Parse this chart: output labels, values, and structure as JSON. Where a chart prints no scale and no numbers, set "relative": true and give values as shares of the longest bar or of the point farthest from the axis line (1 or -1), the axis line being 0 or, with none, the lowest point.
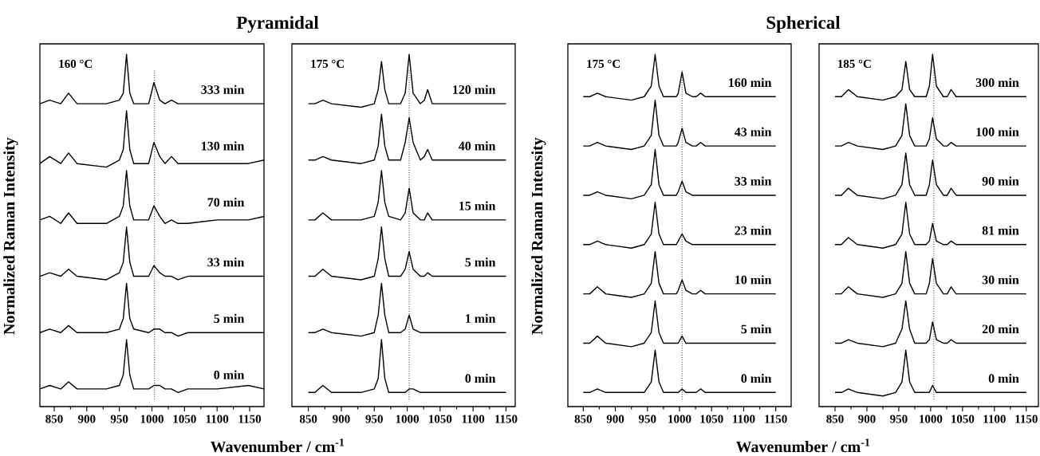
{
  "chart_data": [
    {
      "type": "line",
      "relative": true,
      "title": "Pyramidal",
      "xlabel": "Wavenumber / cm$^{-1}$",
      "ylabel": "Normalized Raman Intensity",
      "annotations": [
        "160 °C"
      ],
      "tick_labels": "x",
      "xlim": [
        828,
        1172
      ],
      "xticks": [
        850,
        {
          "value": 875,
          "label": null
        },
        900,
        {
          "value": 925,
          "label": null
        },
        950,
        {
          "value": 975,
          "label": null
        },
        1000,
        {
          "value": 1025,
          "label": null
        },
        1050,
        {
          "value": 1075,
          "label": null
        },
        1100,
        {
          "value": 1125,
          "label": null
        },
        1150
      ],
      "ref_lines": [
        {
          "axis": "x",
          "value": 1004,
          "color": "#000000",
          "line_style": "dotted"
        }
      ],
      "x": [
        828,
        843,
        860,
        872,
        885,
        930,
        950,
        956,
        961,
        966,
        972,
        995,
        1003,
        1012,
        1020,
        1030,
        1040,
        1055,
        1100,
        1148,
        1172
      ],
      "series": [
        {
          "name": "0 min",
          "color": "#000000",
          "values": [
            0.05,
            0.06,
            0.05,
            0.07,
            0.05,
            0.05,
            0.06,
            0.09,
            0.19,
            0.09,
            0.05,
            0.05,
            0.06,
            0.06,
            0.05,
            0.05,
            0.04,
            0.05,
            0.05,
            0.06,
            0.05
          ]
        },
        {
          "name": "5 min",
          "color": "#000000",
          "values": [
            0.21,
            0.22,
            0.21,
            0.23,
            0.21,
            0.21,
            0.22,
            0.25,
            0.35,
            0.25,
            0.22,
            0.21,
            0.22,
            0.22,
            0.21,
            0.21,
            0.2,
            0.21,
            0.21,
            0.21,
            0.21
          ]
        },
        {
          "name": "33 min",
          "color": "#000000",
          "values": [
            0.37,
            0.38,
            0.37,
            0.39,
            0.37,
            0.36,
            0.38,
            0.41,
            0.51,
            0.41,
            0.37,
            0.37,
            0.4,
            0.38,
            0.37,
            0.37,
            0.36,
            0.37,
            0.37,
            0.37,
            0.37
          ]
        },
        {
          "name": "70 min",
          "color": "#000000",
          "values": [
            0.53,
            0.54,
            0.52,
            0.55,
            0.52,
            0.52,
            0.54,
            0.57,
            0.67,
            0.57,
            0.53,
            0.53,
            0.57,
            0.54,
            0.52,
            0.53,
            0.52,
            0.52,
            0.53,
            0.53,
            0.54
          ]
        },
        {
          "name": "130 min",
          "color": "#000000",
          "values": [
            0.69,
            0.71,
            0.69,
            0.72,
            0.69,
            0.68,
            0.7,
            0.73,
            0.84,
            0.73,
            0.69,
            0.69,
            0.75,
            0.71,
            0.69,
            0.71,
            0.69,
            0.69,
            0.69,
            0.69,
            0.7
          ]
        },
        {
          "name": "333 min",
          "color": "#000000",
          "values": [
            0.86,
            0.87,
            0.86,
            0.89,
            0.86,
            0.86,
            0.87,
            0.89,
            1.0,
            0.89,
            0.86,
            0.86,
            0.92,
            0.87,
            0.86,
            0.87,
            0.86,
            0.86,
            0.86,
            0.86,
            0.86
          ]
        }
      ]
    },
    {
      "type": "line",
      "relative": true,
      "annotations": [
        "175 °C"
      ],
      "tick_labels": "x",
      "xlim": [
        825,
        1164
      ],
      "xticks": [
        850,
        {
          "value": 875,
          "label": null
        },
        900,
        {
          "value": 925,
          "label": null
        },
        950,
        {
          "value": 975,
          "label": null
        },
        1000,
        {
          "value": 1025,
          "label": null
        },
        1050,
        {
          "value": 1075,
          "label": null
        },
        1100,
        {
          "value": 1125,
          "label": null
        },
        1150
      ],
      "ref_lines": [
        {
          "axis": "x",
          "value": 1003,
          "color": "#000000",
          "line_style": "dotted"
        }
      ],
      "x": [
        850,
        860,
        872,
        885,
        930,
        950,
        956,
        961,
        966,
        972,
        990,
        997,
        1003,
        1009,
        1020,
        1026,
        1031,
        1038,
        1050,
        1100,
        1150
      ],
      "series": [
        {
          "name": "0 min",
          "color": "#000000",
          "values": [
            0.04,
            0.04,
            0.06,
            0.04,
            0.04,
            0.05,
            0.08,
            0.19,
            0.08,
            0.04,
            0.04,
            0.04,
            0.05,
            0.05,
            0.04,
            0.04,
            0.04,
            0.04,
            0.04,
            0.04,
            0.04
          ]
        },
        {
          "name": "1 min",
          "color": "#000000",
          "values": [
            0.21,
            0.21,
            0.22,
            0.21,
            0.2,
            0.21,
            0.26,
            0.35,
            0.26,
            0.21,
            0.21,
            0.22,
            0.26,
            0.22,
            0.21,
            0.21,
            0.21,
            0.21,
            0.21,
            0.21,
            0.21
          ]
        },
        {
          "name": "5 min",
          "color": "#000000",
          "values": [
            0.37,
            0.37,
            0.39,
            0.37,
            0.36,
            0.37,
            0.42,
            0.51,
            0.42,
            0.37,
            0.37,
            0.39,
            0.44,
            0.39,
            0.37,
            0.37,
            0.38,
            0.37,
            0.37,
            0.37,
            0.37
          ]
        },
        {
          "name": "15 min",
          "color": "#000000",
          "values": [
            0.53,
            0.53,
            0.55,
            0.53,
            0.53,
            0.54,
            0.58,
            0.67,
            0.58,
            0.54,
            0.53,
            0.55,
            0.62,
            0.55,
            0.53,
            0.53,
            0.55,
            0.53,
            0.53,
            0.53,
            0.53
          ]
        },
        {
          "name": "40 min",
          "color": "#000000",
          "values": [
            0.7,
            0.7,
            0.71,
            0.7,
            0.69,
            0.7,
            0.74,
            0.83,
            0.74,
            0.7,
            0.7,
            0.75,
            0.82,
            0.75,
            0.7,
            0.71,
            0.73,
            0.7,
            0.7,
            0.7,
            0.7
          ]
        },
        {
          "name": "120 min",
          "color": "#000000",
          "values": [
            0.86,
            0.86,
            0.87,
            0.86,
            0.85,
            0.86,
            0.9,
            0.98,
            0.9,
            0.86,
            0.86,
            0.89,
            1.0,
            0.89,
            0.86,
            0.87,
            0.9,
            0.86,
            0.86,
            0.86,
            0.86
          ]
        }
      ]
    },
    {
      "type": "line",
      "relative": true,
      "title": "Spherical",
      "xlabel": "Wavenumber / cm$^{-1}$",
      "ylabel": "Normalized Raman Intensity",
      "annotations": [
        "175 °C"
      ],
      "tick_labels": "x",
      "xlim": [
        826,
        1174
      ],
      "xticks": [
        850,
        {
          "value": 875,
          "label": null
        },
        900,
        {
          "value": 925,
          "label": null
        },
        950,
        {
          "value": 975,
          "label": null
        },
        1000,
        {
          "value": 1025,
          "label": null
        },
        1050,
        {
          "value": 1075,
          "label": null
        },
        1100,
        {
          "value": 1125,
          "label": null
        },
        1150
      ],
      "ref_lines": [
        {
          "axis": "x",
          "value": 1004,
          "color": "#000000",
          "line_style": "dotted"
        }
      ],
      "x": [
        850,
        860,
        872,
        885,
        925,
        945,
        956,
        962,
        968,
        975,
        995,
        998,
        1004,
        1010,
        1020,
        1026,
        1033,
        1040,
        1055,
        1100,
        1150
      ],
      "series": [
        {
          "name": "0 min",
          "color": "#000000",
          "values": [
            0.04,
            0.04,
            0.05,
            0.04,
            0.04,
            0.04,
            0.07,
            0.16,
            0.07,
            0.04,
            0.04,
            0.04,
            0.05,
            0.04,
            0.04,
            0.04,
            0.05,
            0.04,
            0.04,
            0.04,
            0.04
          ]
        },
        {
          "name": "5 min",
          "color": "#000000",
          "values": [
            0.18,
            0.18,
            0.2,
            0.18,
            0.17,
            0.18,
            0.21,
            0.3,
            0.21,
            0.18,
            0.18,
            0.18,
            0.2,
            0.18,
            0.18,
            0.18,
            0.18,
            0.18,
            0.18,
            0.18,
            0.18
          ]
        },
        {
          "name": "10 min",
          "color": "#000000",
          "values": [
            0.32,
            0.32,
            0.34,
            0.32,
            0.31,
            0.32,
            0.35,
            0.44,
            0.35,
            0.32,
            0.32,
            0.33,
            0.36,
            0.33,
            0.32,
            0.32,
            0.33,
            0.32,
            0.32,
            0.32,
            0.32
          ]
        },
        {
          "name": "23 min",
          "color": "#000000",
          "values": [
            0.46,
            0.46,
            0.47,
            0.46,
            0.45,
            0.46,
            0.49,
            0.58,
            0.49,
            0.46,
            0.46,
            0.47,
            0.49,
            0.47,
            0.46,
            0.46,
            0.46,
            0.46,
            0.46,
            0.46,
            0.46
          ]
        },
        {
          "name": "33 min",
          "color": "#000000",
          "values": [
            0.6,
            0.6,
            0.61,
            0.6,
            0.59,
            0.6,
            0.63,
            0.73,
            0.63,
            0.6,
            0.6,
            0.61,
            0.64,
            0.61,
            0.6,
            0.6,
            0.6,
            0.6,
            0.6,
            0.6,
            0.6
          ]
        },
        {
          "name": "43 min",
          "color": "#000000",
          "values": [
            0.74,
            0.74,
            0.75,
            0.74,
            0.73,
            0.74,
            0.77,
            0.87,
            0.77,
            0.74,
            0.74,
            0.75,
            0.79,
            0.75,
            0.74,
            0.74,
            0.75,
            0.74,
            0.74,
            0.74,
            0.74
          ]
        },
        {
          "name": "160 min",
          "color": "#000000",
          "values": [
            0.88,
            0.88,
            0.89,
            0.88,
            0.87,
            0.88,
            0.91,
            1.0,
            0.91,
            0.88,
            0.88,
            0.89,
            0.95,
            0.89,
            0.88,
            0.88,
            0.89,
            0.88,
            0.88,
            0.88,
            0.88
          ]
        }
      ]
    },
    {
      "type": "line",
      "relative": true,
      "annotations": [
        "185 °C"
      ],
      "tick_labels": "x",
      "xlim": [
        825,
        1169
      ],
      "xticks": [
        850,
        {
          "value": 875,
          "label": null
        },
        900,
        {
          "value": 925,
          "label": null
        },
        950,
        {
          "value": 975,
          "label": null
        },
        1000,
        {
          "value": 1025,
          "label": null
        },
        1050,
        {
          "value": 1075,
          "label": null
        },
        1100,
        {
          "value": 1125,
          "label": null
        },
        1150
      ],
      "ref_lines": [
        {
          "axis": "x",
          "value": 1005,
          "color": "#000000",
          "line_style": "dotted"
        }
      ],
      "x": [
        850,
        860,
        871,
        885,
        925,
        945,
        955,
        961,
        967,
        975,
        993,
        998,
        1003,
        1009,
        1020,
        1026,
        1032,
        1040,
        1055,
        1100,
        1150
      ],
      "series": [
        {
          "name": "0 min",
          "color": "#000000",
          "values": [
            0.04,
            0.04,
            0.05,
            0.04,
            0.03,
            0.04,
            0.07,
            0.16,
            0.07,
            0.04,
            0.04,
            0.04,
            0.06,
            0.04,
            0.04,
            0.04,
            0.04,
            0.04,
            0.04,
            0.04,
            0.04
          ]
        },
        {
          "name": "20 min",
          "color": "#000000",
          "values": [
            0.18,
            0.18,
            0.19,
            0.18,
            0.17,
            0.18,
            0.22,
            0.3,
            0.22,
            0.18,
            0.18,
            0.19,
            0.24,
            0.19,
            0.18,
            0.18,
            0.19,
            0.18,
            0.18,
            0.18,
            0.18
          ]
        },
        {
          "name": "30 min",
          "color": "#000000",
          "values": [
            0.32,
            0.32,
            0.34,
            0.32,
            0.31,
            0.32,
            0.35,
            0.44,
            0.35,
            0.32,
            0.32,
            0.35,
            0.42,
            0.35,
            0.32,
            0.32,
            0.34,
            0.32,
            0.32,
            0.32,
            0.32
          ]
        },
        {
          "name": "81 min",
          "color": "#000000",
          "values": [
            0.46,
            0.46,
            0.48,
            0.46,
            0.45,
            0.46,
            0.49,
            0.58,
            0.49,
            0.46,
            0.46,
            0.47,
            0.52,
            0.47,
            0.46,
            0.46,
            0.47,
            0.46,
            0.46,
            0.46,
            0.46
          ]
        },
        {
          "name": "90 min",
          "color": "#000000",
          "values": [
            0.6,
            0.6,
            0.62,
            0.6,
            0.59,
            0.6,
            0.63,
            0.72,
            0.63,
            0.6,
            0.6,
            0.63,
            0.7,
            0.63,
            0.6,
            0.6,
            0.62,
            0.6,
            0.6,
            0.6,
            0.6
          ]
        },
        {
          "name": "100 min",
          "color": "#000000",
          "values": [
            0.74,
            0.74,
            0.75,
            0.74,
            0.73,
            0.74,
            0.77,
            0.86,
            0.77,
            0.74,
            0.74,
            0.76,
            0.82,
            0.76,
            0.74,
            0.74,
            0.75,
            0.74,
            0.74,
            0.74,
            0.74
          ]
        },
        {
          "name": "300 min",
          "color": "#000000",
          "values": [
            0.88,
            0.88,
            0.9,
            0.88,
            0.87,
            0.88,
            0.9,
            0.98,
            0.9,
            0.88,
            0.88,
            0.91,
            1.0,
            0.91,
            0.88,
            0.88,
            0.9,
            0.88,
            0.88,
            0.88,
            0.88
          ]
        }
      ]
    }
  ]
}
